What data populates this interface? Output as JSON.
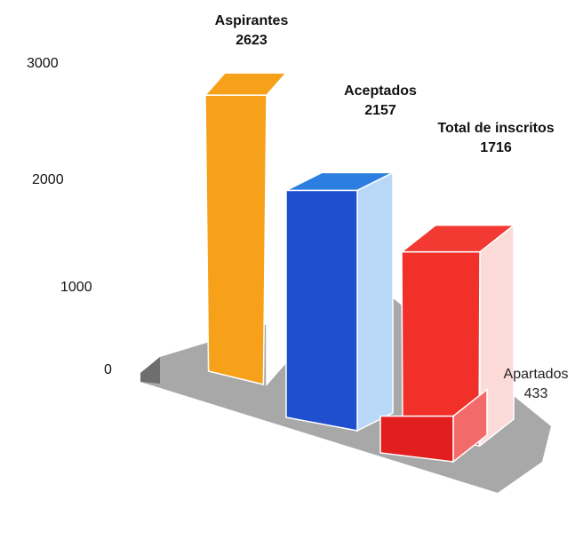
{
  "chart_data": {
    "type": "bar",
    "title": "",
    "xlabel": "",
    "ylabel": "",
    "ylim": [
      0,
      3000
    ],
    "y_ticks": [
      0,
      1000,
      2000,
      3000
    ],
    "categories": [
      "Aspirantes",
      "Aceptados",
      "Total de inscritos",
      "Apartados"
    ],
    "values": [
      2623,
      2157,
      1716,
      433
    ],
    "value_labels": [
      "2623",
      "2157",
      "1716",
      "433"
    ],
    "grid": false,
    "legend": "none",
    "style": "3d",
    "colors": {
      "Aspirantes": "#f7a01a",
      "Aceptados": "#1f4fcf",
      "Total de inscritos": "#f2302a",
      "Apartados": "#e21e1e",
      "floor": "#a8a8a8"
    }
  }
}
